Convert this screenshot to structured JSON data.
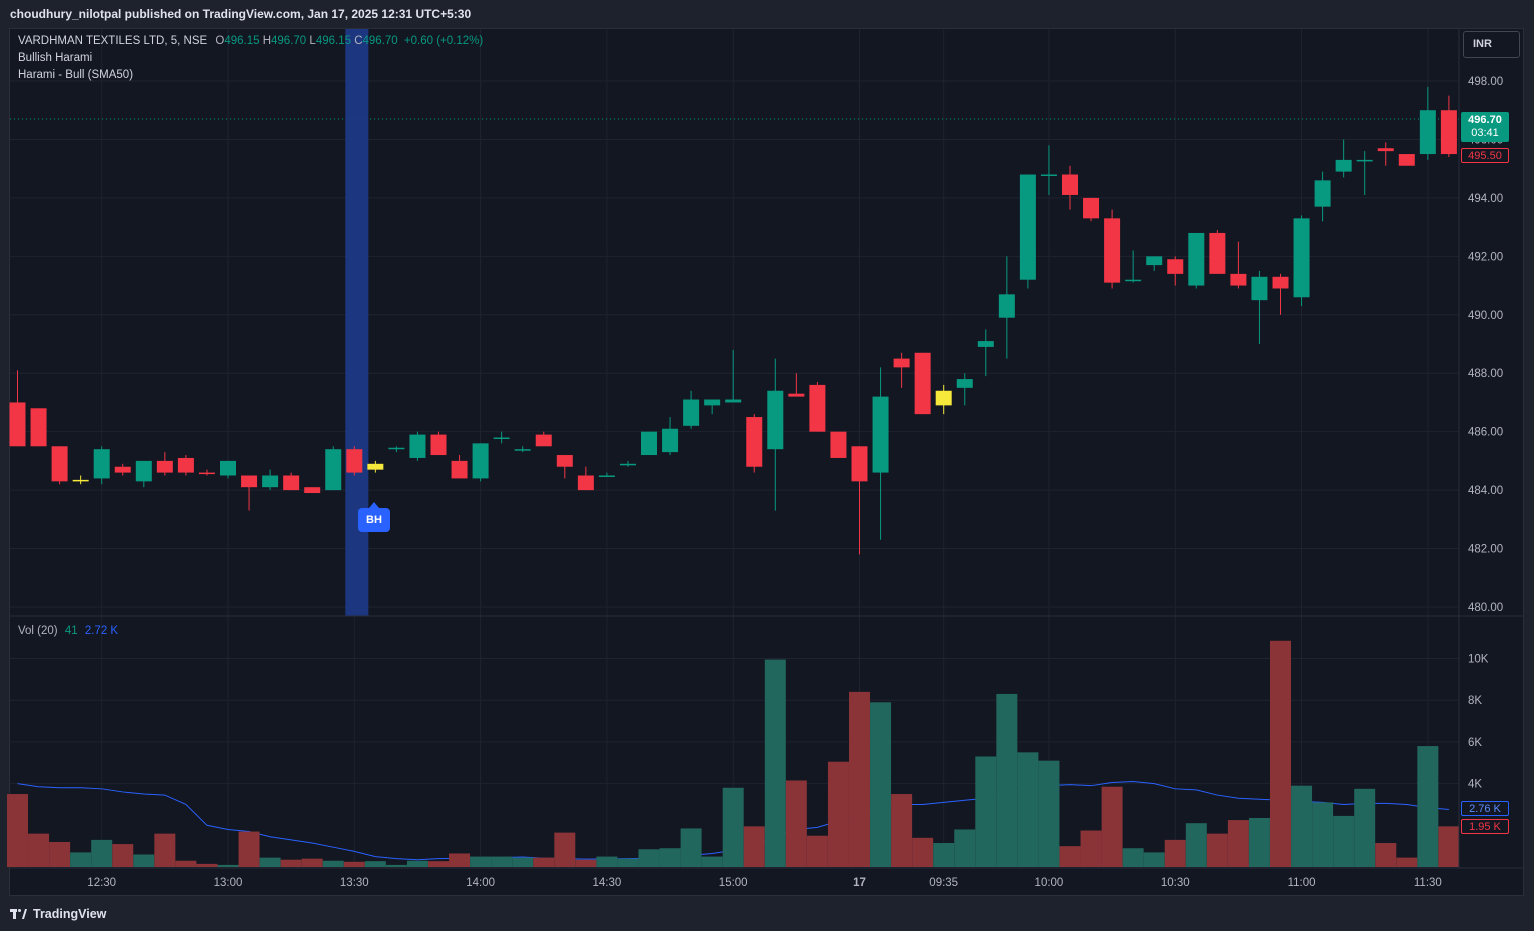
{
  "header": {
    "published_by": "choudhury_nilotpal published on TradingView.com, Jan 17, 2025 12:31 UTC+5:30"
  },
  "legend": {
    "symbol": "VARDHMAN TEXTILES LTD, 5, NSE",
    "o_label": "O",
    "o_value": "496.15",
    "h_label": "H",
    "h_value": "496.70",
    "l_label": "L",
    "l_value": "496.15",
    "c_label": "C",
    "c_value": "496.70",
    "change": "+0.60 (+0.12%)",
    "indicator_1": "Bullish Harami",
    "indicator_2": "Harami - Bull (SMA50)"
  },
  "volume_legend": {
    "label": "Vol (20)",
    "vol_value": "41",
    "ma_value": "2.72 K"
  },
  "currency": "INR",
  "last_price": {
    "price": "496.70",
    "countdown": "03:41",
    "open_marker": "495.50",
    "ma_marker": "2.76 K",
    "vol_marker": "1.95 K"
  },
  "pattern_badge": "BH",
  "footer": {
    "brand": "TradingView"
  },
  "colors": {
    "up": "#089981",
    "down": "#f23645",
    "highlight": "#f7e93b",
    "vol_up": "#22675e",
    "vol_down": "#8a3438",
    "ma_line": "#2962ff",
    "pattern_band": "#1e3a8a",
    "background": "#131722"
  },
  "chart_data": [
    {
      "type": "candlestick",
      "title": "VARDHMAN TEXTILES LTD, 5, NSE",
      "x_tick_labels": [
        "12:30",
        "13:00",
        "13:30",
        "14:00",
        "14:30",
        "15:00",
        "17",
        "09:35",
        "10:00",
        "10:30",
        "11:00",
        "11:30"
      ],
      "x_tick_index": [
        4,
        10,
        16,
        22,
        28,
        34,
        40,
        44,
        49,
        55,
        61,
        67
      ],
      "y_ticks": [
        "480.00",
        "482.00",
        "484.00",
        "486.00",
        "488.00",
        "490.00",
        "492.00",
        "494.00",
        "496.00",
        "498.00"
      ],
      "ylim": [
        480,
        498
      ],
      "highlighted_index": [
        3,
        17,
        44
      ],
      "pattern_band_index": 16,
      "pattern_label": "Bullish Harami",
      "ohlc": [
        [
          487.0,
          488.1,
          485.5,
          485.5
        ],
        [
          486.8,
          486.8,
          485.5,
          485.5
        ],
        [
          485.5,
          485.5,
          484.2,
          484.3
        ],
        [
          484.3,
          484.5,
          484.2,
          484.35
        ],
        [
          484.4,
          485.5,
          484.2,
          485.4
        ],
        [
          484.8,
          484.9,
          484.5,
          484.6
        ],
        [
          484.3,
          485.0,
          484.1,
          485.0
        ],
        [
          485.0,
          485.3,
          484.5,
          484.6
        ],
        [
          485.1,
          485.2,
          484.5,
          484.6
        ],
        [
          484.6,
          484.7,
          484.5,
          484.55
        ],
        [
          484.5,
          485.0,
          484.4,
          485.0
        ],
        [
          484.5,
          484.5,
          483.3,
          484.1
        ],
        [
          484.1,
          484.7,
          484.0,
          484.5
        ],
        [
          484.5,
          484.6,
          484.0,
          484.0
        ],
        [
          484.1,
          484.1,
          483.9,
          483.9
        ],
        [
          484.0,
          485.5,
          484.0,
          485.4
        ],
        [
          485.4,
          485.5,
          484.5,
          484.6
        ],
        [
          484.7,
          485.0,
          484.6,
          484.9
        ],
        [
          485.4,
          485.5,
          485.3,
          485.45
        ],
        [
          485.1,
          486.0,
          485.0,
          485.9
        ],
        [
          485.9,
          486.0,
          485.2,
          485.2
        ],
        [
          485.0,
          485.2,
          484.4,
          484.4
        ],
        [
          484.4,
          485.6,
          484.3,
          485.6
        ],
        [
          485.8,
          486.0,
          485.6,
          485.8
        ],
        [
          485.4,
          485.5,
          485.3,
          485.4
        ],
        [
          485.9,
          486.0,
          485.5,
          485.5
        ],
        [
          485.2,
          485.2,
          484.4,
          484.8
        ],
        [
          484.5,
          484.8,
          484.0,
          484.0
        ],
        [
          484.5,
          484.6,
          484.45,
          484.5
        ],
        [
          484.9,
          485.0,
          484.8,
          484.9
        ],
        [
          485.2,
          486.0,
          485.2,
          486.0
        ],
        [
          485.3,
          486.5,
          485.2,
          486.1
        ],
        [
          486.2,
          487.4,
          486.1,
          487.1
        ],
        [
          486.9,
          487.1,
          486.6,
          487.1
        ],
        [
          487.0,
          488.8,
          487.0,
          487.1
        ],
        [
          486.5,
          486.6,
          484.6,
          484.8
        ],
        [
          485.4,
          488.5,
          483.3,
          487.4
        ],
        [
          487.3,
          488.0,
          487.2,
          487.2
        ],
        [
          487.6,
          487.7,
          486.0,
          486.0
        ],
        [
          486.0,
          486.0,
          485.1,
          485.1
        ],
        [
          485.5,
          485.5,
          481.8,
          484.3
        ],
        [
          484.6,
          488.2,
          482.3,
          487.2
        ],
        [
          488.5,
          488.7,
          487.5,
          488.2
        ],
        [
          488.7,
          488.7,
          486.6,
          486.6
        ],
        [
          486.9,
          487.6,
          486.6,
          487.4
        ],
        [
          487.5,
          488.0,
          486.9,
          487.8
        ],
        [
          488.9,
          489.5,
          487.9,
          489.1
        ],
        [
          489.9,
          492.0,
          488.5,
          490.7
        ],
        [
          491.2,
          494.8,
          490.9,
          494.8
        ],
        [
          494.8,
          495.8,
          494.1,
          494.8
        ],
        [
          494.8,
          495.1,
          493.6,
          494.1
        ],
        [
          494.0,
          494.0,
          493.2,
          493.3
        ],
        [
          493.3,
          493.6,
          490.9,
          491.1
        ],
        [
          491.2,
          492.2,
          491.1,
          491.2
        ],
        [
          491.7,
          492.0,
          491.5,
          492.0
        ],
        [
          491.9,
          492.0,
          491.0,
          491.4
        ],
        [
          491.0,
          492.8,
          490.9,
          492.8
        ],
        [
          492.8,
          492.9,
          491.4,
          491.4
        ],
        [
          491.4,
          492.5,
          490.9,
          491.0
        ],
        [
          490.5,
          491.5,
          489.0,
          491.3
        ],
        [
          491.3,
          491.4,
          490.0,
          490.9
        ],
        [
          490.6,
          493.4,
          490.3,
          493.3
        ],
        [
          493.7,
          494.9,
          493.2,
          494.6
        ],
        [
          494.9,
          496.0,
          494.7,
          495.3
        ],
        [
          495.3,
          495.6,
          494.1,
          495.3
        ],
        [
          495.7,
          495.9,
          495.1,
          495.6
        ],
        [
          495.5,
          495.5,
          495.1,
          495.1
        ],
        [
          495.5,
          497.8,
          495.3,
          497.0
        ],
        [
          497.0,
          497.5,
          495.4,
          495.5
        ]
      ]
    },
    {
      "type": "bar",
      "title": "Vol (20)",
      "y_ticks": [
        "4K",
        "6K",
        "8K",
        "10K"
      ],
      "ylim": [
        0,
        10500
      ],
      "volume": [
        3500,
        1600,
        1200,
        700,
        1300,
        1100,
        600,
        1600,
        300,
        150,
        100,
        1700,
        450,
        350,
        400,
        300,
        250,
        280,
        100,
        300,
        280,
        650,
        500,
        500,
        450,
        450,
        1650,
        350,
        500,
        400,
        850,
        900,
        1850,
        500,
        3800,
        1950,
        9950,
        4150,
        1500,
        5050,
        8400,
        7900,
        3500,
        1400,
        1150,
        1800,
        5300,
        8300,
        5500,
        5100,
        1000,
        1750,
        3850,
        900,
        700,
        1300,
        2100,
        1600,
        2250,
        2350,
        10850,
        3900,
        3100,
        2450,
        3750,
        1150,
        450,
        5800,
        1950
      ],
      "ma_20": [
        4000,
        3850,
        3800,
        3800,
        3750,
        3600,
        3500,
        3450,
        3000,
        2000,
        1800,
        1700,
        1450,
        1300,
        1150,
        950,
        750,
        500,
        400,
        350,
        400,
        420,
        420,
        450,
        480,
        420,
        400,
        380,
        390,
        400,
        420,
        450,
        560,
        650,
        800,
        1000,
        1500,
        1800,
        1900,
        2200,
        2600,
        2900,
        3000,
        3000,
        3100,
        3200,
        3300,
        3500,
        3750,
        3900,
        3950,
        3900,
        4050,
        4100,
        4000,
        3750,
        3700,
        3450,
        3300,
        3250,
        3200,
        3150,
        3100,
        3000,
        3050,
        3050,
        3000,
        2850,
        2760
      ]
    }
  ]
}
